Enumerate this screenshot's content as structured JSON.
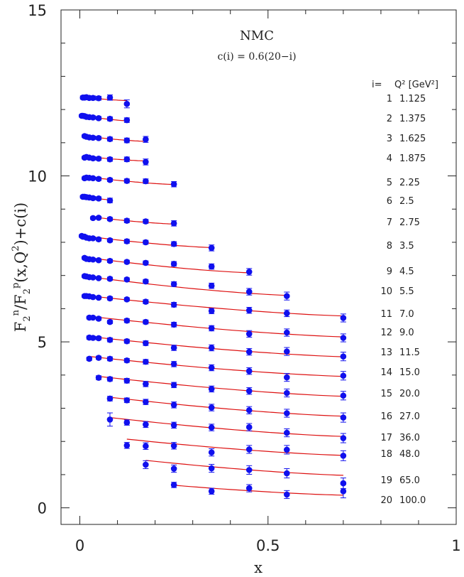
{
  "chart_data": {
    "type": "scatter",
    "title": "NMC",
    "subtitle": "c(i) = 0.6(20−i)",
    "xlabel": "x",
    "ylabel": "F2n/F2p(x,Q2)+c(i)",
    "xlim": [
      -0.05,
      1.0
    ],
    "ylim": [
      -0.5,
      15.0
    ],
    "x_ticks": [
      "0",
      "0.5",
      "1"
    ],
    "y_ticks": [
      "0",
      "5",
      "10",
      "15"
    ],
    "legend_header": {
      "i": "i=",
      "q2": "Q² [GeV²]"
    },
    "legend": [
      {
        "i": "1",
        "q2": "1.125"
      },
      {
        "i": "2",
        "q2": "1.375"
      },
      {
        "i": "3",
        "q2": "1.625"
      },
      {
        "i": "4",
        "q2": "1.875"
      },
      {
        "i": "5",
        "q2": "2.25"
      },
      {
        "i": "6",
        "q2": "2.5"
      },
      {
        "i": "7",
        "q2": "2.75"
      },
      {
        "i": "8",
        "q2": "3.5"
      },
      {
        "i": "9",
        "q2": "4.5"
      },
      {
        "i": "10",
        "q2": "5.5"
      },
      {
        "i": "11",
        "q2": "7.0"
      },
      {
        "i": "12",
        "q2": "9.0"
      },
      {
        "i": "13",
        "q2": "11.5"
      },
      {
        "i": "14",
        "q2": "15.0"
      },
      {
        "i": "15",
        "q2": "20.0"
      },
      {
        "i": "16",
        "q2": "27.0"
      },
      {
        "i": "17",
        "q2": "36.0"
      },
      {
        "i": "18",
        "q2": "48.0"
      },
      {
        "i": "19",
        "q2": "65.0"
      },
      {
        "i": "20",
        "q2": "100.0"
      }
    ],
    "colors": {
      "points": "#1010ee",
      "fit": "#dd1111"
    },
    "series": [
      {
        "name": "i=1",
        "x": [
          0.008,
          0.0125,
          0.0175,
          0.025,
          0.035,
          0.05,
          0.08,
          0.125
        ],
        "y": [
          12.36,
          12.36,
          12.37,
          12.35,
          12.35,
          12.34,
          12.36,
          12.17
        ],
        "err": [
          0.05,
          0.05,
          0.05,
          0.05,
          0.06,
          0.06,
          0.08,
          0.12
        ],
        "fit": [
          [
            0.008,
            12.37
          ],
          [
            0.125,
            12.27
          ]
        ]
      },
      {
        "name": "i=2",
        "x": [
          0.005,
          0.008,
          0.0125,
          0.0175,
          0.025,
          0.035,
          0.05,
          0.08,
          0.125
        ],
        "y": [
          11.81,
          11.81,
          11.8,
          11.78,
          11.77,
          11.76,
          11.74,
          11.72,
          11.68
        ],
        "err": [
          0.04,
          0.04,
          0.04,
          0.04,
          0.04,
          0.05,
          0.05,
          0.06,
          0.07
        ],
        "fit": [
          [
            0.005,
            11.82
          ],
          [
            0.125,
            11.66
          ]
        ]
      },
      {
        "name": "i=3",
        "x": [
          0.0125,
          0.0175,
          0.025,
          0.035,
          0.05,
          0.08,
          0.125,
          0.175
        ],
        "y": [
          11.2,
          11.18,
          11.16,
          11.15,
          11.14,
          11.11,
          11.07,
          11.1
        ],
        "err": [
          0.04,
          0.04,
          0.04,
          0.05,
          0.05,
          0.06,
          0.07,
          0.09
        ],
        "fit": [
          [
            0.0125,
            11.2
          ],
          [
            0.175,
            11.04
          ]
        ]
      },
      {
        "name": "i=4",
        "x": [
          0.0125,
          0.0175,
          0.025,
          0.035,
          0.05,
          0.08,
          0.125,
          0.175
        ],
        "y": [
          10.55,
          10.57,
          10.55,
          10.53,
          10.52,
          10.5,
          10.5,
          10.42
        ],
        "err": [
          0.04,
          0.04,
          0.04,
          0.05,
          0.05,
          0.06,
          0.07,
          0.09
        ],
        "fit": [
          [
            0.0125,
            10.59
          ],
          [
            0.175,
            10.45
          ]
        ]
      },
      {
        "name": "i=5",
        "x": [
          0.0125,
          0.0175,
          0.025,
          0.035,
          0.05,
          0.08,
          0.125,
          0.175,
          0.25
        ],
        "y": [
          9.93,
          9.95,
          9.94,
          9.93,
          9.91,
          9.88,
          9.85,
          9.84,
          9.75
        ],
        "err": [
          0.04,
          0.04,
          0.04,
          0.04,
          0.05,
          0.05,
          0.06,
          0.07,
          0.08
        ],
        "fit": [
          [
            0.0125,
            9.98
          ],
          [
            0.25,
            9.74
          ]
        ]
      },
      {
        "name": "i=6",
        "x": [
          0.008,
          0.0125,
          0.0175,
          0.025,
          0.035,
          0.05,
          0.08
        ],
        "y": [
          9.37,
          9.37,
          9.36,
          9.35,
          9.33,
          9.32,
          9.26
        ],
        "err": [
          0.04,
          0.04,
          0.04,
          0.04,
          0.05,
          0.05,
          0.07
        ],
        "fit": [
          [
            0.008,
            9.38
          ],
          [
            0.08,
            9.28
          ]
        ]
      },
      {
        "name": "i=7",
        "x": [
          0.035,
          0.05,
          0.08,
          0.125,
          0.175,
          0.25
        ],
        "y": [
          8.73,
          8.74,
          8.7,
          8.65,
          8.63,
          8.57
        ],
        "err": [
          0.04,
          0.04,
          0.05,
          0.06,
          0.06,
          0.08
        ],
        "fit": [
          [
            0.035,
            8.76
          ],
          [
            0.25,
            8.55
          ]
        ]
      },
      {
        "name": "i=8",
        "x": [
          0.005,
          0.008,
          0.0125,
          0.0175,
          0.025,
          0.035,
          0.05,
          0.08,
          0.125,
          0.175,
          0.25,
          0.35
        ],
        "y": [
          8.19,
          8.17,
          8.17,
          8.14,
          8.12,
          8.12,
          8.09,
          8.06,
          8.03,
          8.0,
          7.95,
          7.83
        ],
        "err": [
          0.04,
          0.04,
          0.04,
          0.04,
          0.04,
          0.04,
          0.05,
          0.05,
          0.06,
          0.06,
          0.07,
          0.09
        ],
        "fit": [
          [
            0.005,
            8.2
          ],
          [
            0.35,
            7.84
          ]
        ]
      },
      {
        "name": "i=9",
        "x": [
          0.0125,
          0.0175,
          0.025,
          0.035,
          0.05,
          0.08,
          0.125,
          0.175,
          0.25,
          0.35,
          0.45
        ],
        "y": [
          7.53,
          7.5,
          7.49,
          7.48,
          7.46,
          7.44,
          7.41,
          7.38,
          7.35,
          7.27,
          7.11
        ],
        "err": [
          0.04,
          0.04,
          0.04,
          0.04,
          0.04,
          0.05,
          0.05,
          0.06,
          0.07,
          0.08,
          0.1
        ],
        "fit": [
          [
            0.0125,
            7.55
          ],
          [
            0.45,
            7.08
          ]
        ]
      },
      {
        "name": "i=10",
        "x": [
          0.0125,
          0.0175,
          0.025,
          0.035,
          0.05,
          0.08,
          0.125,
          0.175,
          0.25,
          0.35,
          0.45,
          0.55
        ],
        "y": [
          6.98,
          6.97,
          6.95,
          6.94,
          6.92,
          6.9,
          6.88,
          6.82,
          6.74,
          6.69,
          6.51,
          6.38
        ],
        "err": [
          0.04,
          0.04,
          0.04,
          0.04,
          0.04,
          0.05,
          0.05,
          0.06,
          0.07,
          0.08,
          0.1,
          0.12
        ],
        "fit": [
          [
            0.0125,
            6.98
          ],
          [
            0.55,
            6.4
          ]
        ]
      },
      {
        "name": "i=11",
        "x": [
          0.0125,
          0.0175,
          0.025,
          0.035,
          0.05,
          0.08,
          0.125,
          0.175,
          0.25,
          0.35,
          0.45,
          0.55,
          0.7
        ],
        "y": [
          6.38,
          6.38,
          6.37,
          6.35,
          6.33,
          6.31,
          6.28,
          6.21,
          6.12,
          5.93,
          5.95,
          5.86,
          5.72
        ],
        "err": [
          0.04,
          0.04,
          0.04,
          0.04,
          0.04,
          0.05,
          0.05,
          0.06,
          0.07,
          0.08,
          0.09,
          0.1,
          0.12
        ],
        "fit": [
          [
            0.0125,
            6.4
          ],
          [
            0.7,
            5.78
          ]
        ]
      },
      {
        "name": "i=12",
        "x": [
          0.025,
          0.035,
          0.05,
          0.08,
          0.125,
          0.175,
          0.25,
          0.35,
          0.45,
          0.55,
          0.7
        ],
        "y": [
          5.73,
          5.73,
          5.7,
          5.6,
          5.64,
          5.6,
          5.52,
          5.41,
          5.24,
          5.28,
          5.12
        ],
        "err": [
          0.04,
          0.04,
          0.05,
          0.05,
          0.06,
          0.06,
          0.07,
          0.08,
          0.1,
          0.11,
          0.12
        ],
        "fit": [
          [
            0.025,
            5.77
          ],
          [
            0.7,
            5.15
          ]
        ]
      },
      {
        "name": "i=13",
        "x": [
          0.025,
          0.035,
          0.05,
          0.08,
          0.125,
          0.175,
          0.25,
          0.35,
          0.45,
          0.55,
          0.7
        ],
        "y": [
          5.13,
          5.12,
          5.11,
          5.06,
          5.02,
          4.96,
          4.82,
          4.82,
          4.7,
          4.71,
          4.56
        ],
        "err": [
          0.05,
          0.05,
          0.05,
          0.06,
          0.06,
          0.07,
          0.08,
          0.09,
          0.1,
          0.12,
          0.13
        ],
        "fit": [
          [
            0.025,
            5.16
          ],
          [
            0.7,
            4.55
          ]
        ]
      },
      {
        "name": "i=14",
        "x": [
          0.025,
          0.05,
          0.08,
          0.125,
          0.175,
          0.25,
          0.35,
          0.45,
          0.55,
          0.7
        ],
        "y": [
          4.49,
          4.52,
          4.49,
          4.44,
          4.4,
          4.33,
          4.22,
          4.12,
          3.93,
          3.98
        ],
        "err": [
          0.05,
          0.05,
          0.06,
          0.06,
          0.07,
          0.08,
          0.09,
          0.1,
          0.12,
          0.13
        ],
        "fit": [
          [
            0.025,
            4.56
          ],
          [
            0.7,
            3.96
          ]
        ]
      },
      {
        "name": "i=15",
        "x": [
          0.05,
          0.08,
          0.125,
          0.175,
          0.25,
          0.35,
          0.45,
          0.55,
          0.7
        ],
        "y": [
          3.92,
          3.88,
          3.83,
          3.73,
          3.7,
          3.58,
          3.52,
          3.46,
          3.38
        ],
        "err": [
          0.06,
          0.06,
          0.07,
          0.08,
          0.08,
          0.09,
          0.1,
          0.12,
          0.13
        ],
        "fit": [
          [
            0.05,
            3.96
          ],
          [
            0.7,
            3.36
          ]
        ]
      },
      {
        "name": "i=16",
        "x": [
          0.08,
          0.125,
          0.175,
          0.25,
          0.35,
          0.45,
          0.55,
          0.7
        ],
        "y": [
          3.29,
          3.24,
          3.19,
          3.1,
          3.02,
          2.94,
          2.85,
          2.72
        ],
        "err": [
          0.07,
          0.07,
          0.08,
          0.09,
          0.1,
          0.11,
          0.12,
          0.14
        ],
        "fit": [
          [
            0.08,
            3.33
          ],
          [
            0.7,
            2.76
          ]
        ]
      },
      {
        "name": "i=17",
        "x": [
          0.08,
          0.125,
          0.175,
          0.25,
          0.35,
          0.45,
          0.55,
          0.7
        ],
        "y": [
          2.66,
          2.57,
          2.51,
          2.49,
          2.42,
          2.43,
          2.26,
          2.1
        ],
        "err": [
          0.2,
          0.08,
          0.09,
          0.09,
          0.1,
          0.11,
          0.12,
          0.14
        ],
        "fit": [
          [
            0.08,
            2.72
          ],
          [
            0.7,
            2.15
          ]
        ]
      },
      {
        "name": "i=18",
        "x": [
          0.125,
          0.175,
          0.25,
          0.35,
          0.45,
          0.55,
          0.7
        ],
        "y": [
          1.88,
          1.86,
          1.87,
          1.67,
          1.76,
          1.75,
          1.57
        ],
        "err": [
          0.09,
          0.1,
          0.1,
          0.11,
          0.12,
          0.13,
          0.15
        ],
        "fit": [
          [
            0.125,
            2.07
          ],
          [
            0.7,
            1.58
          ]
        ]
      },
      {
        "name": "i=19",
        "x": [
          0.175,
          0.25,
          0.35,
          0.45,
          0.55,
          0.7
        ],
        "y": [
          1.3,
          1.18,
          1.19,
          1.14,
          1.04,
          0.74
        ],
        "err": [
          0.12,
          0.11,
          0.12,
          0.13,
          0.14,
          0.16
        ],
        "fit": [
          [
            0.175,
            1.43
          ],
          [
            0.7,
            0.98
          ]
        ]
      },
      {
        "name": "i=20",
        "x": [
          0.25,
          0.35,
          0.45,
          0.55,
          0.7
        ],
        "y": [
          0.69,
          0.5,
          0.59,
          0.4,
          0.5
        ],
        "err": [
          0.08,
          0.09,
          0.11,
          0.12,
          0.2
        ],
        "fit": [
          [
            0.25,
            0.68
          ],
          [
            0.7,
            0.38
          ]
        ]
      }
    ]
  }
}
